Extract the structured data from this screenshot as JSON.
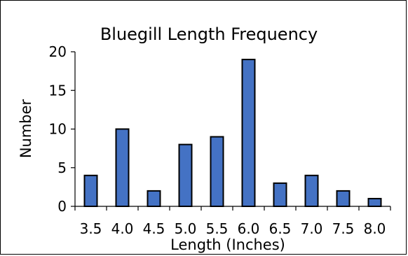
{
  "chart_data": {
    "type": "bar",
    "title": "Bluegill Length Frequency",
    "xlabel": "Length (Inches)",
    "ylabel": "Number",
    "categories": [
      "3.5",
      "4.0",
      "4.5",
      "5.0",
      "5.5",
      "6.0",
      "6.5",
      "7.0",
      "7.5",
      "8.0"
    ],
    "values": [
      4,
      10,
      2,
      8,
      9,
      19,
      3,
      4,
      2,
      1
    ],
    "ylim": [
      0,
      20
    ],
    "yticks": [
      "0",
      "5",
      "10",
      "15",
      "20"
    ],
    "grid": false,
    "legend": "none",
    "colors": {
      "bar_fill": "#4472C4",
      "bar_stroke": "#000000",
      "axis": "#000000"
    }
  }
}
